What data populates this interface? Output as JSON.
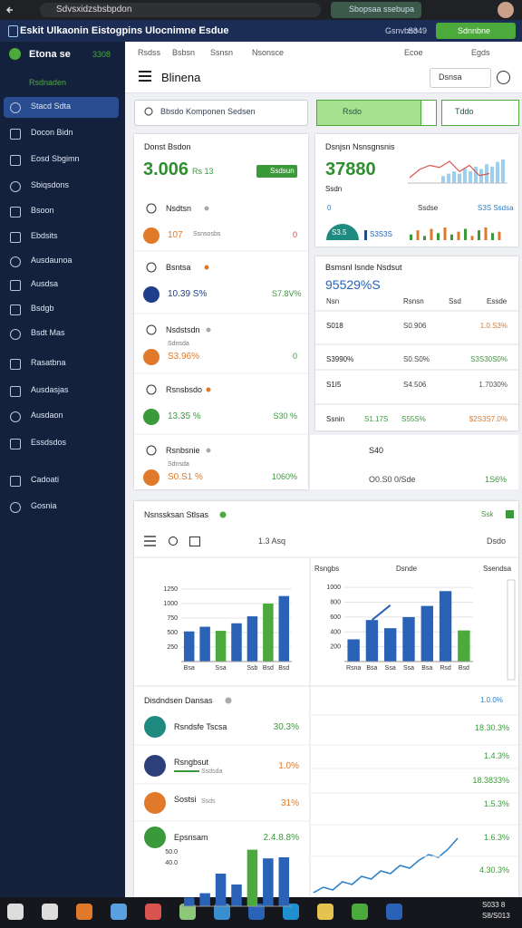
{
  "browser": {
    "address": "Sdvsxidzsbsbpdon",
    "tab": "Sbopsaa ssebupa"
  },
  "header": {
    "title": "Eskit Ulkaonin Eistogpins Ulocnimne Esdue",
    "links": [
      "Gsnvbno",
      "S349"
    ],
    "button": "Sdnnbne"
  },
  "sidebar": {
    "brand": "Etona se",
    "badge": "3308",
    "section": "Rsdnaden",
    "items": [
      "Stacd Sdta",
      "Docon Bidn",
      "Eosd Sbgimn",
      "Sbiqsdons",
      "Bsoon",
      "Ebdsits",
      "Ausdaunoa",
      "Ausdsa",
      "Bsdgb",
      "Bsdt Mas",
      "Rasatbna",
      "Ausdasjas",
      "Ausdaon",
      "Essdsdos",
      "Cadoati",
      "Gosnia"
    ]
  },
  "toolbar": {
    "tabs": [
      "Rsdss",
      "Bsbsn",
      "Ssnsn",
      "Nsonsce"
    ],
    "right": [
      "Ecoe",
      "Egds"
    ]
  },
  "page": {
    "title": "Blinena",
    "button": "Dsnsa",
    "search": "Bbsdo Komponen Sedsen",
    "filter": "Rsdo",
    "dropdown": "Tddo"
  },
  "summary": {
    "title": "Donst Bsdon",
    "value": "3.006",
    "sub": "Rs 13",
    "badge": "Ssdsun"
  },
  "list": [
    {
      "name": "Nsdtsn",
      "value": "107",
      "sub": "Ssnsosbs",
      "change": "0",
      "icon_color": "#e07a2a",
      "change_color": "#d64545"
    },
    {
      "name": "Bsntsa",
      "value": "10.39 S%",
      "change": "S7.8V%",
      "icon_color": "#1f3f8a",
      "change_color": "#3a9a3a"
    },
    {
      "name": "Nsdstsdn",
      "value": "S3.96%",
      "sub": "Sdnsda",
      "change": "0",
      "icon_color": "#e07a2a",
      "change_color": "#3a9a3a"
    },
    {
      "name": "Rsnsbsdo",
      "value": "13.35 %",
      "change": "S30 %",
      "icon_color": "#3a9a3a",
      "change_color": "#3a9a3a"
    },
    {
      "name": "Rsnbsnie",
      "value": "S0.S1 %",
      "sub": "Sdnsda",
      "change": "1060%",
      "icon_color": "#e07a2a",
      "change_color": "#3a9a3a"
    }
  ],
  "trend": {
    "title": "Dsnjsn Nsnsgnsnis",
    "value": "37880",
    "sub": "Ssdn",
    "legend": [
      "0",
      "Ssdse",
      "S3S Ssdsa"
    ],
    "gauge_label": "S3.5",
    "bar_label": "S3S3S",
    "line": [
      5,
      7,
      8,
      7.5,
      9,
      6.5,
      8,
      5.5,
      6
    ],
    "line_color": "#d9534f",
    "bars": [
      3,
      4,
      5,
      4,
      6,
      5,
      7,
      6,
      8,
      7,
      9,
      10
    ],
    "bar_color": "#9dd0ef",
    "mini_bars": [
      4,
      7,
      3,
      8,
      5,
      9,
      4,
      6,
      8,
      3,
      7,
      9,
      5,
      6
    ],
    "mini_colors": [
      "#3a9a3a",
      "#e07a2a"
    ]
  },
  "table": {
    "title": "Bsmsnl Isnde Nsdsut",
    "value": "95529%S",
    "columns": [
      "Nsn",
      "Rsnsn",
      "Ssd",
      "Essde"
    ],
    "rows": [
      {
        "name": "S018",
        "values": [
          "S0.906",
          "1.0.S3%"
        ]
      },
      {
        "name": "S3990%",
        "values": [
          "S0.S0%",
          "S3S30S0%"
        ]
      },
      {
        "name": "S1I5",
        "values": [
          "S4.506",
          "1.7030%"
        ]
      },
      {
        "name": "Ssnin",
        "values": [
          "S1.17S",
          "S55S%",
          "$2S3S7.0%"
        ]
      }
    ]
  },
  "footer_stats": {
    "a": "S40",
    "b": "O0.S0 0/Sde",
    "c": "1S6%"
  },
  "section": {
    "title": "Nsnssksan Stlsas",
    "badge": "Ssk",
    "action": "Dsdo",
    "range": "1.3 Asq",
    "right_labels": [
      "Rsngbs",
      "Dsnde",
      "Ssendsa"
    ]
  },
  "charts": [
    {
      "type": "bar",
      "categories": [
        "Bsa",
        null,
        "Ssa",
        null,
        "Ssb",
        "Bsd",
        "Bsd"
      ],
      "values": [
        520,
        600,
        530,
        660,
        780,
        1000,
        1130
      ],
      "colors": [
        "#2a62b8",
        "#2a62b8",
        "#4caa3c",
        "#2a62b8",
        "#2a62b8",
        "#4caa3c",
        "#2a62b8"
      ],
      "ylim": [
        0,
        1250
      ],
      "yticks": [
        250,
        500,
        750,
        1000,
        1250
      ],
      "grid": true
    },
    {
      "type": "bar",
      "categories": [
        "Rsna",
        "Bsa",
        "Ssa",
        "Ssa",
        "Bsa",
        "Rsd",
        "Bsd"
      ],
      "values": [
        300,
        560,
        450,
        600,
        750,
        950,
        420
      ],
      "line": [
        null,
        560,
        760,
        null,
        null,
        null,
        null
      ],
      "line_color": "#2a62b8",
      "colors": [
        "#2a62b8",
        "#2a62b8",
        "#2a62b8",
        "#2a62b8",
        "#2a62b8",
        "#2a62b8",
        "#4caa3c"
      ],
      "ylim": [
        0,
        1100
      ],
      "yticks": [
        200,
        400,
        600,
        800,
        1000
      ],
      "grid": true
    },
    {
      "type": "bar",
      "values": [
        8,
        12,
        30,
        20,
        52,
        44,
        45
      ],
      "colors": [
        "#2a62b8",
        "#2a62b8",
        "#2a62b8",
        "#2a62b8",
        "#4caa3c",
        "#2a62b8",
        "#2a62b8"
      ],
      "ylim": [
        0,
        60
      ],
      "yticks": [
        {
          "value": 40,
          "label": "40.0"
        },
        {
          "value": 50,
          "label": "50.0"
        }
      ],
      "grid": false
    },
    {
      "type": "line",
      "values": [
        2,
        3,
        2.5,
        4,
        3.5,
        5,
        4.5,
        6,
        5.5,
        7,
        6.5,
        8,
        9,
        8.5,
        10,
        12
      ],
      "color": "#2a7fc8"
    }
  ],
  "distribution": {
    "title": "Disdndsen Dansas",
    "top_value": "1.0.0%",
    "items": [
      {
        "name": "Rsndsfe Tscsa",
        "value": "30.3%",
        "color": "#3a9a3a"
      },
      {
        "name": "Rsngbsut",
        "sub": "Ssdsda",
        "value": "1.0%",
        "color": "#e07a2a"
      },
      {
        "name": "Sostsi",
        "sub": "Ssds",
        "value": "31%",
        "color": "#e07a2a"
      },
      {
        "name": "Epsnsam",
        "value": "2.4.8.8%",
        "color": "#3a9a3a"
      }
    ],
    "right_values": [
      "18.30.3%",
      "1.4.3%",
      "18.3833%",
      "1.5.3%",
      "1.6.3%",
      "4.30.3%"
    ]
  },
  "taskbar": {
    "time": "S033 8",
    "date": "S8/S013"
  }
}
